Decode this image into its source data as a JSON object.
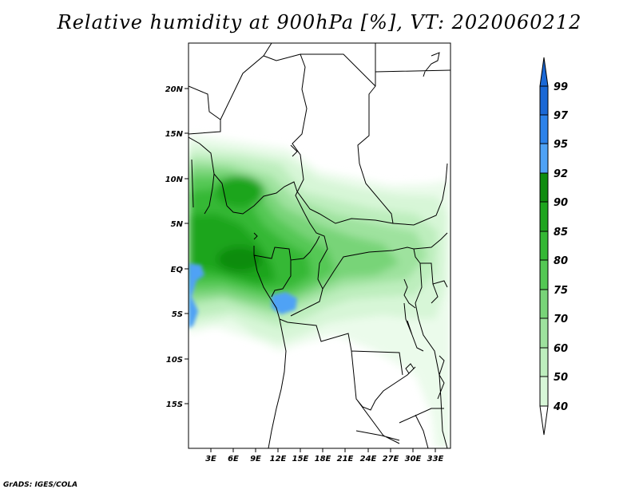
{
  "title": "Relative humidity at 900hPa [%], VT: 2020060212",
  "credit": "GrADS: IGES/COLA",
  "map": {
    "lat_ticks": [
      "20N",
      "15N",
      "10N",
      "5N",
      "EQ",
      "5S",
      "10S",
      "15S"
    ],
    "lon_ticks": [
      "3E",
      "6E",
      "9E",
      "12E",
      "15E",
      "18E",
      "21E",
      "24E",
      "27E",
      "30E",
      "33E"
    ],
    "lon_range": [
      0,
      35
    ],
    "lat_range": [
      -20,
      24.5
    ]
  },
  "colorbar": {
    "levels": [
      "99",
      "97",
      "95",
      "92",
      "90",
      "85",
      "80",
      "75",
      "70",
      "60",
      "50",
      "40"
    ],
    "colors": [
      "#1a68d6",
      "#2c82ea",
      "#4fa2f5",
      "#0f8c0f",
      "#1fa51f",
      "#34b834",
      "#54c854",
      "#78d478",
      "#9ee29e",
      "#bdeebd",
      "#d7f6d7",
      "#ebfbeb"
    ],
    "top_color": "#1a68d6",
    "bottom_color": "#ffffff"
  }
}
